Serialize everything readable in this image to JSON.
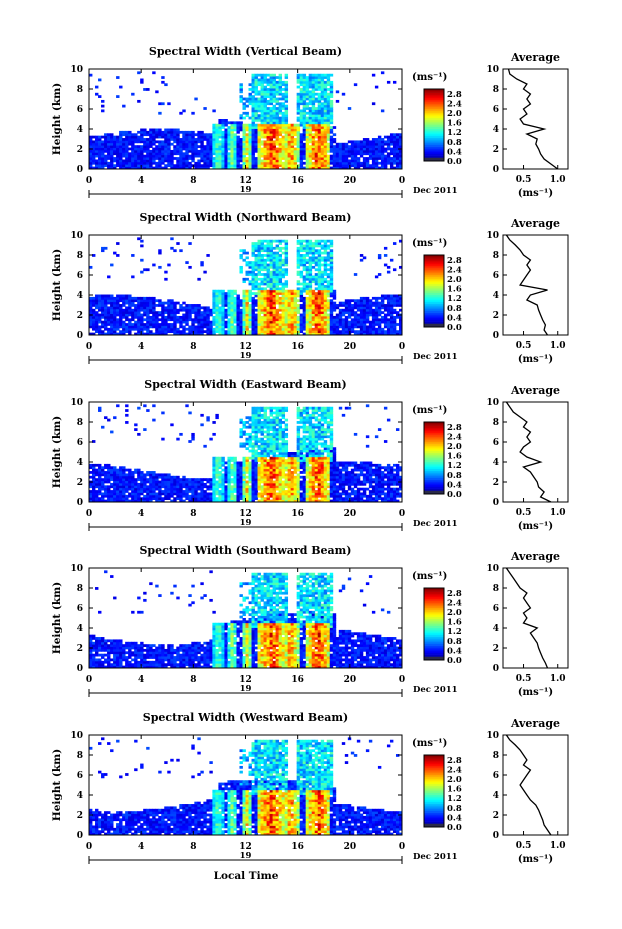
{
  "figure": {
    "xlabel": "Local Time",
    "ylabel": "Height (km)",
    "colorbar_unit": "(ms⁻¹)",
    "avg_title": "Average",
    "avg_xlabel": "(ms⁻¹)",
    "date_suffix": "Dec 2011",
    "day_label": "19"
  },
  "chart_data": [
    {
      "type": "heatmap",
      "title": "Spectral Width (Vertical Beam)",
      "x_ticks": [
        "0",
        "4",
        "8",
        "12",
        "16",
        "20",
        "0"
      ],
      "y_ticks": [
        "0",
        "2",
        "4",
        "6",
        "8",
        "10"
      ],
      "xlim": [
        0,
        24
      ],
      "ylim": [
        0,
        10
      ],
      "colorbar_ticks": [
        "0.0",
        "0.4",
        "0.8",
        "1.2",
        "1.6",
        "2.0",
        "2.4",
        "2.8"
      ],
      "colorbar_range": [
        0,
        3.0
      ],
      "average_profile": {
        "x_ticks": [
          "0.5",
          "1.0"
        ],
        "xlim": [
          0.2,
          1.15
        ],
        "heights": [
          0,
          0.5,
          1,
          1.5,
          2,
          2.5,
          3,
          3.5,
          4,
          4.5,
          5,
          5.5,
          6,
          6.5,
          7,
          7.5,
          8,
          8.5,
          9,
          9.5,
          10
        ],
        "values": [
          1.0,
          0.9,
          0.8,
          0.75,
          0.72,
          0.68,
          0.7,
          0.55,
          0.8,
          0.5,
          0.45,
          0.55,
          0.5,
          0.6,
          0.55,
          0.6,
          0.5,
          0.55,
          0.4,
          0.3,
          0.28
        ]
      }
    },
    {
      "type": "heatmap",
      "title": "Spectral Width (Northward Beam)",
      "x_ticks": [
        "0",
        "4",
        "8",
        "12",
        "16",
        "20",
        "0"
      ],
      "y_ticks": [
        "0",
        "2",
        "4",
        "6",
        "8",
        "10"
      ],
      "xlim": [
        0,
        24
      ],
      "ylim": [
        0,
        10
      ],
      "colorbar_ticks": [
        "0.0",
        "0.4",
        "0.8",
        "1.2",
        "1.6",
        "2.0",
        "2.4",
        "2.8"
      ],
      "colorbar_range": [
        0,
        3.0
      ],
      "average_profile": {
        "x_ticks": [
          "0.5",
          "1.0"
        ],
        "xlim": [
          0.2,
          1.15
        ],
        "heights": [
          0,
          0.5,
          1,
          1.5,
          2,
          2.5,
          3,
          3.5,
          4,
          4.5,
          5,
          5.5,
          6,
          6.5,
          7,
          7.5,
          8,
          8.5,
          9,
          9.5,
          10
        ],
        "values": [
          0.85,
          0.8,
          0.82,
          0.78,
          0.75,
          0.72,
          0.7,
          0.55,
          0.6,
          0.85,
          0.45,
          0.5,
          0.55,
          0.6,
          0.55,
          0.6,
          0.5,
          0.45,
          0.38,
          0.3,
          0.25
        ]
      }
    },
    {
      "type": "heatmap",
      "title": "Spectral Width (Eastward Beam)",
      "x_ticks": [
        "0",
        "4",
        "8",
        "12",
        "16",
        "20",
        "0"
      ],
      "y_ticks": [
        "0",
        "2",
        "4",
        "6",
        "8",
        "10"
      ],
      "xlim": [
        0,
        24
      ],
      "ylim": [
        0,
        10
      ],
      "colorbar_ticks": [
        "0.0",
        "0.4",
        "0.8",
        "1.2",
        "1.6",
        "2.0",
        "2.4",
        "2.8"
      ],
      "colorbar_range": [
        0,
        3.0
      ],
      "average_profile": {
        "x_ticks": [
          "0.5",
          "1.0"
        ],
        "xlim": [
          0.2,
          1.15
        ],
        "heights": [
          0,
          0.5,
          1,
          1.5,
          2,
          2.5,
          3,
          3.5,
          4,
          4.5,
          5,
          5.5,
          6,
          6.5,
          7,
          7.5,
          8,
          8.5,
          9,
          9.5,
          10
        ],
        "values": [
          0.9,
          0.75,
          0.8,
          0.72,
          0.7,
          0.65,
          0.6,
          0.5,
          0.75,
          0.55,
          0.45,
          0.5,
          0.6,
          0.55,
          0.6,
          0.5,
          0.55,
          0.45,
          0.35,
          0.3,
          0.25
        ]
      }
    },
    {
      "type": "heatmap",
      "title": "Spectral Width (Southward Beam)",
      "x_ticks": [
        "0",
        "4",
        "8",
        "12",
        "16",
        "20",
        "0"
      ],
      "y_ticks": [
        "0",
        "2",
        "4",
        "6",
        "8",
        "10"
      ],
      "xlim": [
        0,
        24
      ],
      "ylim": [
        0,
        10
      ],
      "colorbar_ticks": [
        "0.0",
        "0.4",
        "0.8",
        "1.2",
        "1.6",
        "2.0",
        "2.4",
        "2.8"
      ],
      "colorbar_range": [
        0,
        3.0
      ],
      "average_profile": {
        "x_ticks": [
          "0.5",
          "1.0"
        ],
        "xlim": [
          0.2,
          1.15
        ],
        "heights": [
          0,
          0.5,
          1,
          1.5,
          2,
          2.5,
          3,
          3.5,
          4,
          4.5,
          5,
          5.5,
          6,
          6.5,
          7,
          7.5,
          8,
          8.5,
          9,
          9.5,
          10
        ],
        "values": [
          0.85,
          0.82,
          0.78,
          0.75,
          0.72,
          0.7,
          0.65,
          0.6,
          0.7,
          0.5,
          0.55,
          0.5,
          0.6,
          0.55,
          0.5,
          0.55,
          0.45,
          0.4,
          0.35,
          0.3,
          0.25
        ]
      }
    },
    {
      "type": "heatmap",
      "title": "Spectral Width (Westward Beam)",
      "x_ticks": [
        "0",
        "4",
        "8",
        "12",
        "16",
        "20",
        "0"
      ],
      "y_ticks": [
        "0",
        "2",
        "4",
        "6",
        "8",
        "10"
      ],
      "xlim": [
        0,
        24
      ],
      "ylim": [
        0,
        10
      ],
      "colorbar_ticks": [
        "0.0",
        "0.4",
        "0.8",
        "1.2",
        "1.6",
        "2.0",
        "2.4",
        "2.8"
      ],
      "colorbar_range": [
        0,
        3.0
      ],
      "average_profile": {
        "x_ticks": [
          "0.5",
          "1.0"
        ],
        "xlim": [
          0.2,
          1.15
        ],
        "heights": [
          0,
          0.5,
          1,
          1.5,
          2,
          2.5,
          3,
          3.5,
          4,
          4.5,
          5,
          5.5,
          6,
          6.5,
          7,
          7.5,
          8,
          8.5,
          9,
          9.5,
          10
        ],
        "values": [
          0.9,
          0.85,
          0.8,
          0.78,
          0.75,
          0.72,
          0.68,
          0.6,
          0.55,
          0.5,
          0.45,
          0.5,
          0.55,
          0.6,
          0.5,
          0.55,
          0.5,
          0.45,
          0.38,
          0.3,
          0.25
        ]
      }
    }
  ]
}
